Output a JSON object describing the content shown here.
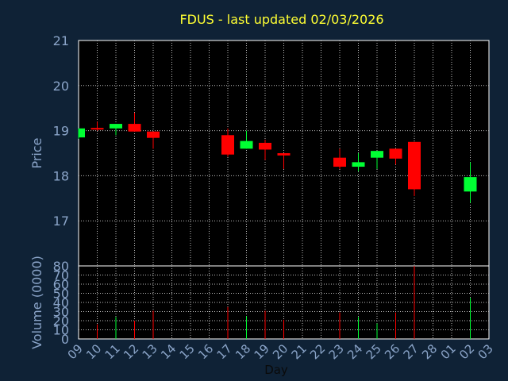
{
  "chart_data": {
    "type": "candlestick",
    "title": "FDUS - last updated 02/03/2026",
    "xlabel": "Day",
    "price_panel": {
      "ylabel": "Price",
      "ylim": [
        16,
        21
      ],
      "yticks": [
        17,
        18,
        19,
        20,
        21
      ],
      "grid": true
    },
    "volume_panel": {
      "ylabel": "Volume (0000)",
      "ylim": [
        0,
        80
      ],
      "yticks": [
        0,
        10,
        20,
        30,
        40,
        50,
        60,
        70,
        80
      ],
      "grid": true
    },
    "x_ticks": [
      "09",
      "10",
      "11",
      "12",
      "13",
      "14",
      "15",
      "16",
      "17",
      "18",
      "19",
      "20",
      "21",
      "22",
      "23",
      "24",
      "25",
      "26",
      "27",
      "28",
      "01",
      "02",
      "03"
    ],
    "candles": [
      {
        "x": "09",
        "open": 18.85,
        "high": 19.05,
        "low": 18.82,
        "close": 19.05,
        "volume": 0
      },
      {
        "x": "10",
        "open": 19.06,
        "high": 19.2,
        "low": 19.0,
        "close": 19.03,
        "volume": 16
      },
      {
        "x": "11",
        "open": 19.05,
        "high": 19.15,
        "low": 18.9,
        "close": 19.15,
        "volume": 24
      },
      {
        "x": "12",
        "open": 19.15,
        "high": 19.4,
        "low": 18.98,
        "close": 18.98,
        "volume": 20
      },
      {
        "x": "13",
        "open": 18.98,
        "high": 18.98,
        "low": 18.6,
        "close": 18.84,
        "volume": 31
      },
      {
        "x": "17",
        "open": 18.9,
        "high": 19.05,
        "low": 18.42,
        "close": 18.47,
        "volume": 35
      },
      {
        "x": "18",
        "open": 18.6,
        "high": 19.0,
        "low": 18.6,
        "close": 18.77,
        "volume": 25
      },
      {
        "x": "19",
        "open": 18.73,
        "high": 18.8,
        "low": 18.35,
        "close": 18.58,
        "volume": 31
      },
      {
        "x": "20",
        "open": 18.5,
        "high": 18.5,
        "low": 18.15,
        "close": 18.45,
        "volume": 21
      },
      {
        "x": "23",
        "open": 18.4,
        "high": 18.6,
        "low": 18.15,
        "close": 18.2,
        "volume": 29
      },
      {
        "x": "24",
        "open": 18.2,
        "high": 18.5,
        "low": 18.1,
        "close": 18.3,
        "volume": 24
      },
      {
        "x": "25",
        "open": 18.4,
        "high": 18.55,
        "low": 18.15,
        "close": 18.55,
        "volume": 17
      },
      {
        "x": "26",
        "open": 18.6,
        "high": 18.6,
        "low": 18.25,
        "close": 18.38,
        "volume": 29
      },
      {
        "x": "27",
        "open": 18.75,
        "high": 18.75,
        "low": 17.55,
        "close": 17.7,
        "volume": 80
      },
      {
        "x": "02",
        "open": 17.65,
        "high": 18.3,
        "low": 17.4,
        "close": 17.97,
        "volume": 45
      }
    ],
    "colors": {
      "up": "#00ff33",
      "down": "#ff0000",
      "background": "#0f2236",
      "plot_background": "#000000",
      "grid": "#bbbbbb",
      "axis_text": "#8aa4c8",
      "title": "#ffff33"
    }
  }
}
